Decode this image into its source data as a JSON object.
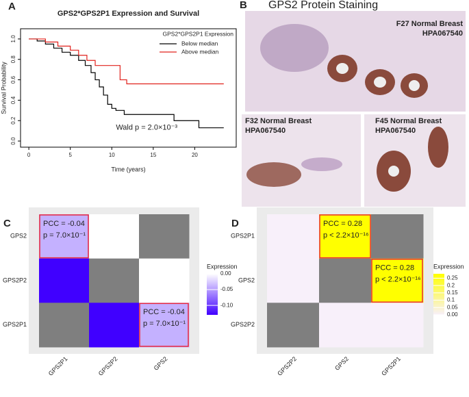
{
  "figure": {
    "panel_labels": [
      "A",
      "B",
      "C",
      "D"
    ],
    "staining_title": "GPS2 Protein Staining",
    "images": [
      {
        "caption": [
          "F27 Normal Breast",
          "HPA067540"
        ]
      },
      {
        "caption": [
          "F32 Normal Breast",
          "HPA067540"
        ]
      },
      {
        "caption": [
          "F45 Normal Breast",
          "HPA067540"
        ]
      }
    ]
  },
  "chart_data": [
    {
      "type": "step",
      "title": "GPS2*GPS2P1 Expression and Survival",
      "x_label": "Time (years)",
      "y_label": "Survival Probability",
      "annotation": "Wald p = 2.0×10⁻³",
      "legend_title": "GPS2*GPS2P1 Expression",
      "legend": "top-right",
      "xlim": [
        -1,
        25
      ],
      "ylim": [
        -0.06,
        1.1
      ],
      "xticks": [
        0,
        5,
        10,
        15,
        20
      ],
      "yticks": [
        {
          "value": 0,
          "label": "0.0"
        },
        0.2,
        0.4,
        0.6,
        0.8,
        {
          "value": 1,
          "label": "1.0"
        }
      ],
      "series": [
        {
          "name": "Below median",
          "color": "#000000",
          "x": [
            0,
            1,
            1,
            2,
            2,
            3,
            3,
            4,
            4,
            5,
            5,
            6,
            6,
            6.8,
            6.8,
            7.5,
            7.5,
            8,
            8,
            8.5,
            8.5,
            9,
            9,
            9.5,
            9.5,
            10,
            10,
            10.5,
            10.5,
            11.5,
            11.5,
            17.5,
            17.5,
            20.5,
            20.5,
            23.5
          ],
          "values": [
            1,
            1,
            0.98,
            0.98,
            0.95,
            0.95,
            0.91,
            0.91,
            0.87,
            0.87,
            0.84,
            0.84,
            0.79,
            0.79,
            0.74,
            0.74,
            0.67,
            0.67,
            0.6,
            0.6,
            0.53,
            0.53,
            0.45,
            0.45,
            0.36,
            0.36,
            0.32,
            0.32,
            0.3,
            0.3,
            0.26,
            0.26,
            0.2,
            0.2,
            0.13,
            0.13
          ]
        },
        {
          "name": "Above median",
          "color": "#e0201b",
          "x": [
            0,
            2,
            2,
            3.5,
            3.5,
            5,
            5,
            6,
            6,
            7,
            7,
            8,
            8,
            11,
            11,
            11.8,
            11.8,
            23.5
          ],
          "values": [
            1,
            1,
            0.97,
            0.97,
            0.93,
            0.93,
            0.89,
            0.89,
            0.84,
            0.84,
            0.79,
            0.79,
            0.74,
            0.74,
            0.6,
            0.6,
            0.56,
            0.56
          ]
        }
      ]
    },
    {
      "type": "heatmap",
      "x_categories": [
        "GPS2P1",
        "GPS2P2",
        "GPS2"
      ],
      "y_categories": [
        "GPS2",
        "GPS2P2",
        "GPS2P1"
      ],
      "values": [
        [
          -0.04,
          0,
          null
        ],
        [
          -0.13,
          null,
          0
        ],
        [
          null,
          -0.13,
          -0.04
        ]
      ],
      "colors": [
        "#4000ff",
        "#ffffff"
      ],
      "clim": [
        -0.13,
        0
      ],
      "na_color": "#7f7f7f",
      "highlight_color": "#e8283c",
      "legend_title": "Expression",
      "cticks": [
        {
          "value": 0,
          "label": "0.00"
        },
        {
          "value": -0.05,
          "label": "-0.05"
        },
        {
          "value": -0.1,
          "label": "-0.10"
        }
      ],
      "annotations": [
        {
          "x": "GPS2P1",
          "y": "GPS2",
          "lines": [
            "PCC = -0.04",
            "p = 7.0×10⁻¹"
          ]
        },
        {
          "x": "GPS2",
          "y": "GPS2P1",
          "lines": [
            "PCC = -0.04",
            "p = 7.0×10⁻¹"
          ]
        }
      ]
    },
    {
      "type": "heatmap",
      "x_categories": [
        "GPS2P2",
        "GPS2",
        "GPS2P1"
      ],
      "y_categories": [
        "GPS2P1",
        "GPS2",
        "GPS2P2"
      ],
      "values": [
        [
          0,
          0.28,
          null
        ],
        [
          0,
          null,
          0.28
        ],
        [
          null,
          0,
          0
        ]
      ],
      "colors": [
        "#f8f0fa",
        "#ffff00"
      ],
      "clim": [
        0,
        0.28
      ],
      "na_color": "#7f7f7f",
      "highlight_color": "#e8283c",
      "legend_title": "Expression",
      "cticks": [
        {
          "value": 0,
          "label": "0.00"
        },
        0.05,
        0.1,
        0.15,
        0.2,
        0.25
      ],
      "annotations": [
        {
          "x": "GPS2",
          "y": "GPS2P1",
          "lines": [
            "PCC = 0.28",
            "p < 2.2×10⁻¹⁶"
          ]
        },
        {
          "x": "GPS2P1",
          "y": "GPS2",
          "lines": [
            "PCC = 0.28",
            "p < 2.2×10⁻¹⁶"
          ]
        }
      ]
    }
  ]
}
